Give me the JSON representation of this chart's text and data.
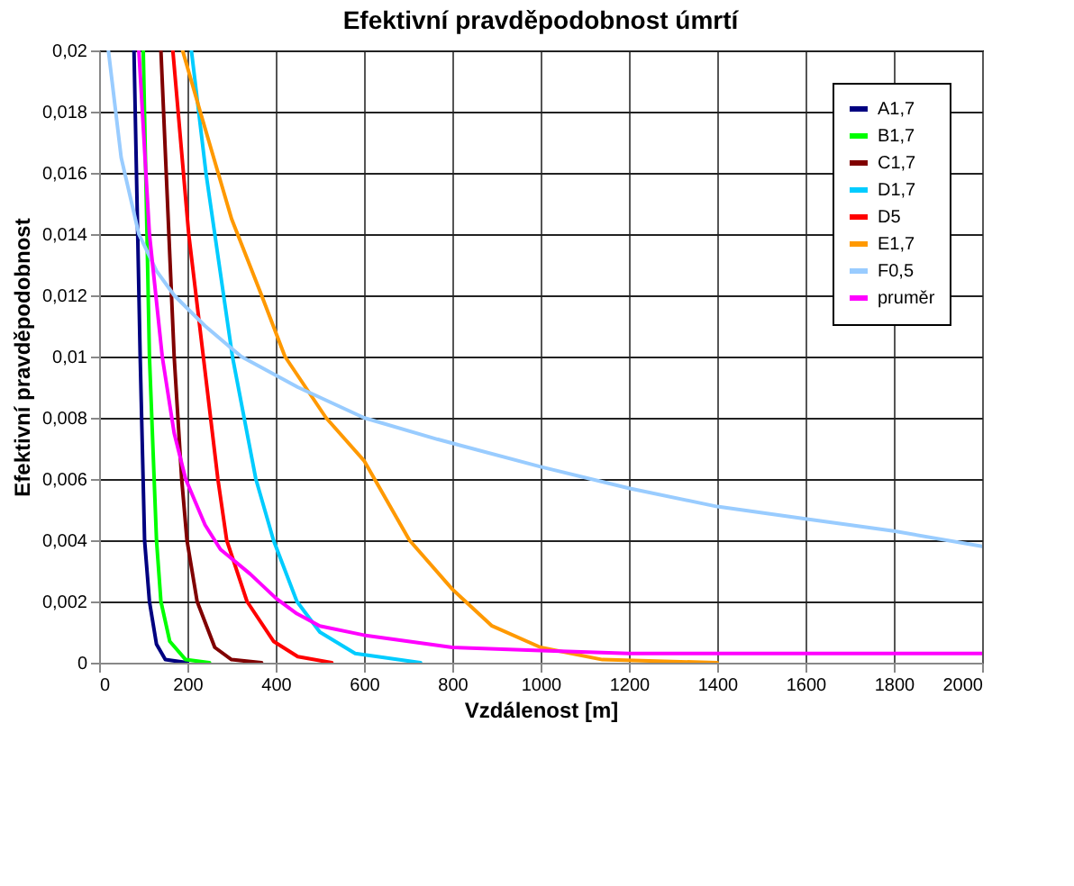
{
  "chart_data": {
    "type": "line",
    "title": "Efektivní pravděpodobnost úmrtí",
    "xlabel": "Vzdálenost [m]",
    "ylabel": "Efektivní pravděpodobnost",
    "xlim": [
      0,
      2000
    ],
    "xticks": [
      0,
      200,
      400,
      600,
      800,
      1000,
      1200,
      1400,
      1600,
      1800,
      2000
    ],
    "ylim": [
      0,
      0.02
    ],
    "yticks": [
      0,
      {
        "value": 0.002,
        "label": "0,002"
      },
      {
        "value": 0.004,
        "label": "0,004"
      },
      {
        "value": 0.006,
        "label": "0,006"
      },
      {
        "value": 0.008,
        "label": "0,008"
      },
      {
        "value": 0.01,
        "label": "0,01"
      },
      {
        "value": 0.012,
        "label": "0,012"
      },
      {
        "value": 0.014,
        "label": "0,014"
      },
      {
        "value": 0.016,
        "label": "0,016"
      },
      {
        "value": 0.018,
        "label": "0,018"
      },
      {
        "value": 0.02,
        "label": "0,02"
      }
    ],
    "grid": true,
    "legend": "top right",
    "marker": "none",
    "line_style": "solid",
    "series": [
      {
        "name": "A1,7",
        "color": "#000080",
        "x": [
          79,
          93,
          103,
          114,
          130,
          150,
          200
        ],
        "values": [
          0.02,
          0.01,
          0.004,
          0.002,
          0.0006,
          0.0001,
          0
        ]
      },
      {
        "name": "B1,7",
        "color": "#00ff00",
        "x": [
          100,
          114,
          130,
          140,
          160,
          196,
          250
        ],
        "values": [
          0.02,
          0.01,
          0.004,
          0.002,
          0.0007,
          0.0001,
          0
        ]
      },
      {
        "name": "C1,7",
        "color": "#800000",
        "x": [
          140,
          170,
          187,
          199,
          222,
          262,
          300,
          368
        ],
        "values": [
          0.02,
          0.01,
          0.006,
          0.004,
          0.002,
          0.0005,
          0.0001,
          0
        ]
      },
      {
        "name": "D1,7",
        "color": "#00ccff",
        "x": [
          209,
          242,
          302,
          355,
          395,
          448,
          500,
          580,
          728
        ],
        "values": [
          0.02,
          0.016,
          0.01,
          0.006,
          0.004,
          0.002,
          0.001,
          0.0003,
          0
        ]
      },
      {
        "name": "D5",
        "color": "#ff0000",
        "x": [
          167,
          203,
          236,
          269,
          289,
          335,
          395,
          450,
          527
        ],
        "values": [
          0.02,
          0.014,
          0.01,
          0.006,
          0.004,
          0.002,
          0.0007,
          0.0002,
          0
        ]
      },
      {
        "name": "E1,7",
        "color": "#ff9900",
        "x": [
          189,
          229,
          300,
          368,
          421,
          514,
          600,
          703,
          800,
          890,
          1000,
          1140,
          1400
        ],
        "values": [
          0.02,
          0.018,
          0.0145,
          0.012,
          0.01,
          0.008,
          0.0066,
          0.004,
          0.0024,
          0.0012,
          0.0005,
          0.0001,
          0
        ]
      },
      {
        "name": "F0,5",
        "color": "#99ccff",
        "x": [
          21,
          50,
          90,
          130,
          170,
          240,
          322,
          450,
          600,
          766,
          1000,
          1200,
          1400,
          1600,
          1800,
          2000
        ],
        "values": [
          0.02,
          0.0165,
          0.014,
          0.0128,
          0.012,
          0.011,
          0.01,
          0.009,
          0.008,
          0.0073,
          0.0064,
          0.0057,
          0.0051,
          0.0047,
          0.0043,
          0.0038
        ]
      },
      {
        "name": "pruměr",
        "color": "#ff00ff",
        "x": [
          90,
          114,
          143,
          170,
          196,
          240,
          275,
          342,
          401,
          448,
          500,
          600,
          800,
          1000,
          1200,
          1500,
          2000
        ],
        "values": [
          0.02,
          0.014,
          0.01,
          0.0075,
          0.006,
          0.0045,
          0.0037,
          0.0029,
          0.0021,
          0.0016,
          0.0012,
          0.0009,
          0.0005,
          0.0004,
          0.0003,
          0.0003,
          0.0003
        ]
      }
    ]
  }
}
